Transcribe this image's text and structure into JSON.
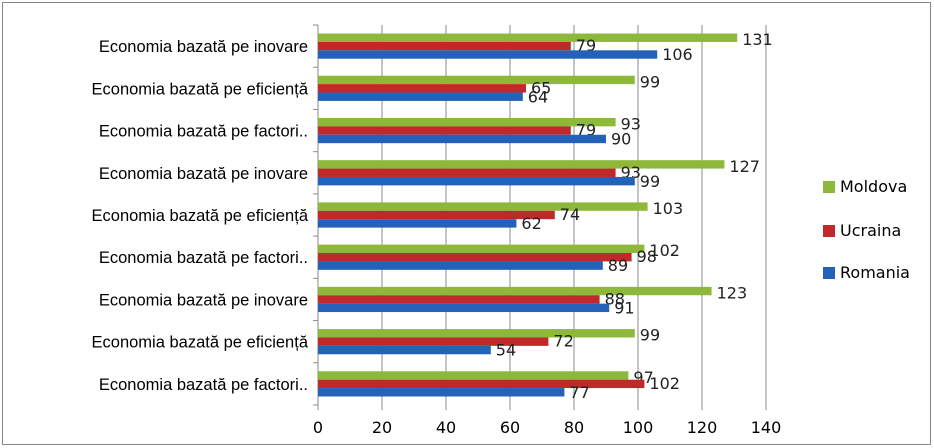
{
  "chart_data": {
    "type": "bar",
    "orientation": "horizontal",
    "title": "",
    "xlabel": "",
    "ylabel": "",
    "xlim": [
      0,
      140
    ],
    "xticks": [
      "0",
      "20",
      "40",
      "60",
      "80",
      "100",
      "120",
      "140"
    ],
    "grid": true,
    "legend_position": "right",
    "categories": [
      "Economia bazată pe inovare",
      "Economia bazată pe eficiență",
      "Economia bazată pe factori..",
      "Economia bazată pe inovare",
      "Economia bazată pe eficiență",
      "Economia bazată pe factori..",
      "Economia bazată pe inovare",
      "Economia bazată pe eficiență",
      "Economia bazată pe factori.."
    ],
    "series": [
      {
        "name": "Moldova",
        "color": "#8db83a",
        "values": [
          131,
          99,
          93,
          127,
          103,
          102,
          123,
          99,
          97
        ]
      },
      {
        "name": "Ucraina",
        "color": "#c0282a",
        "values": [
          79,
          65,
          79,
          93,
          74,
          98,
          88,
          72,
          102
        ]
      },
      {
        "name": "Romania",
        "color": "#2461b8",
        "values": [
          106,
          64,
          90,
          99,
          62,
          89,
          91,
          54,
          77
        ]
      }
    ]
  }
}
